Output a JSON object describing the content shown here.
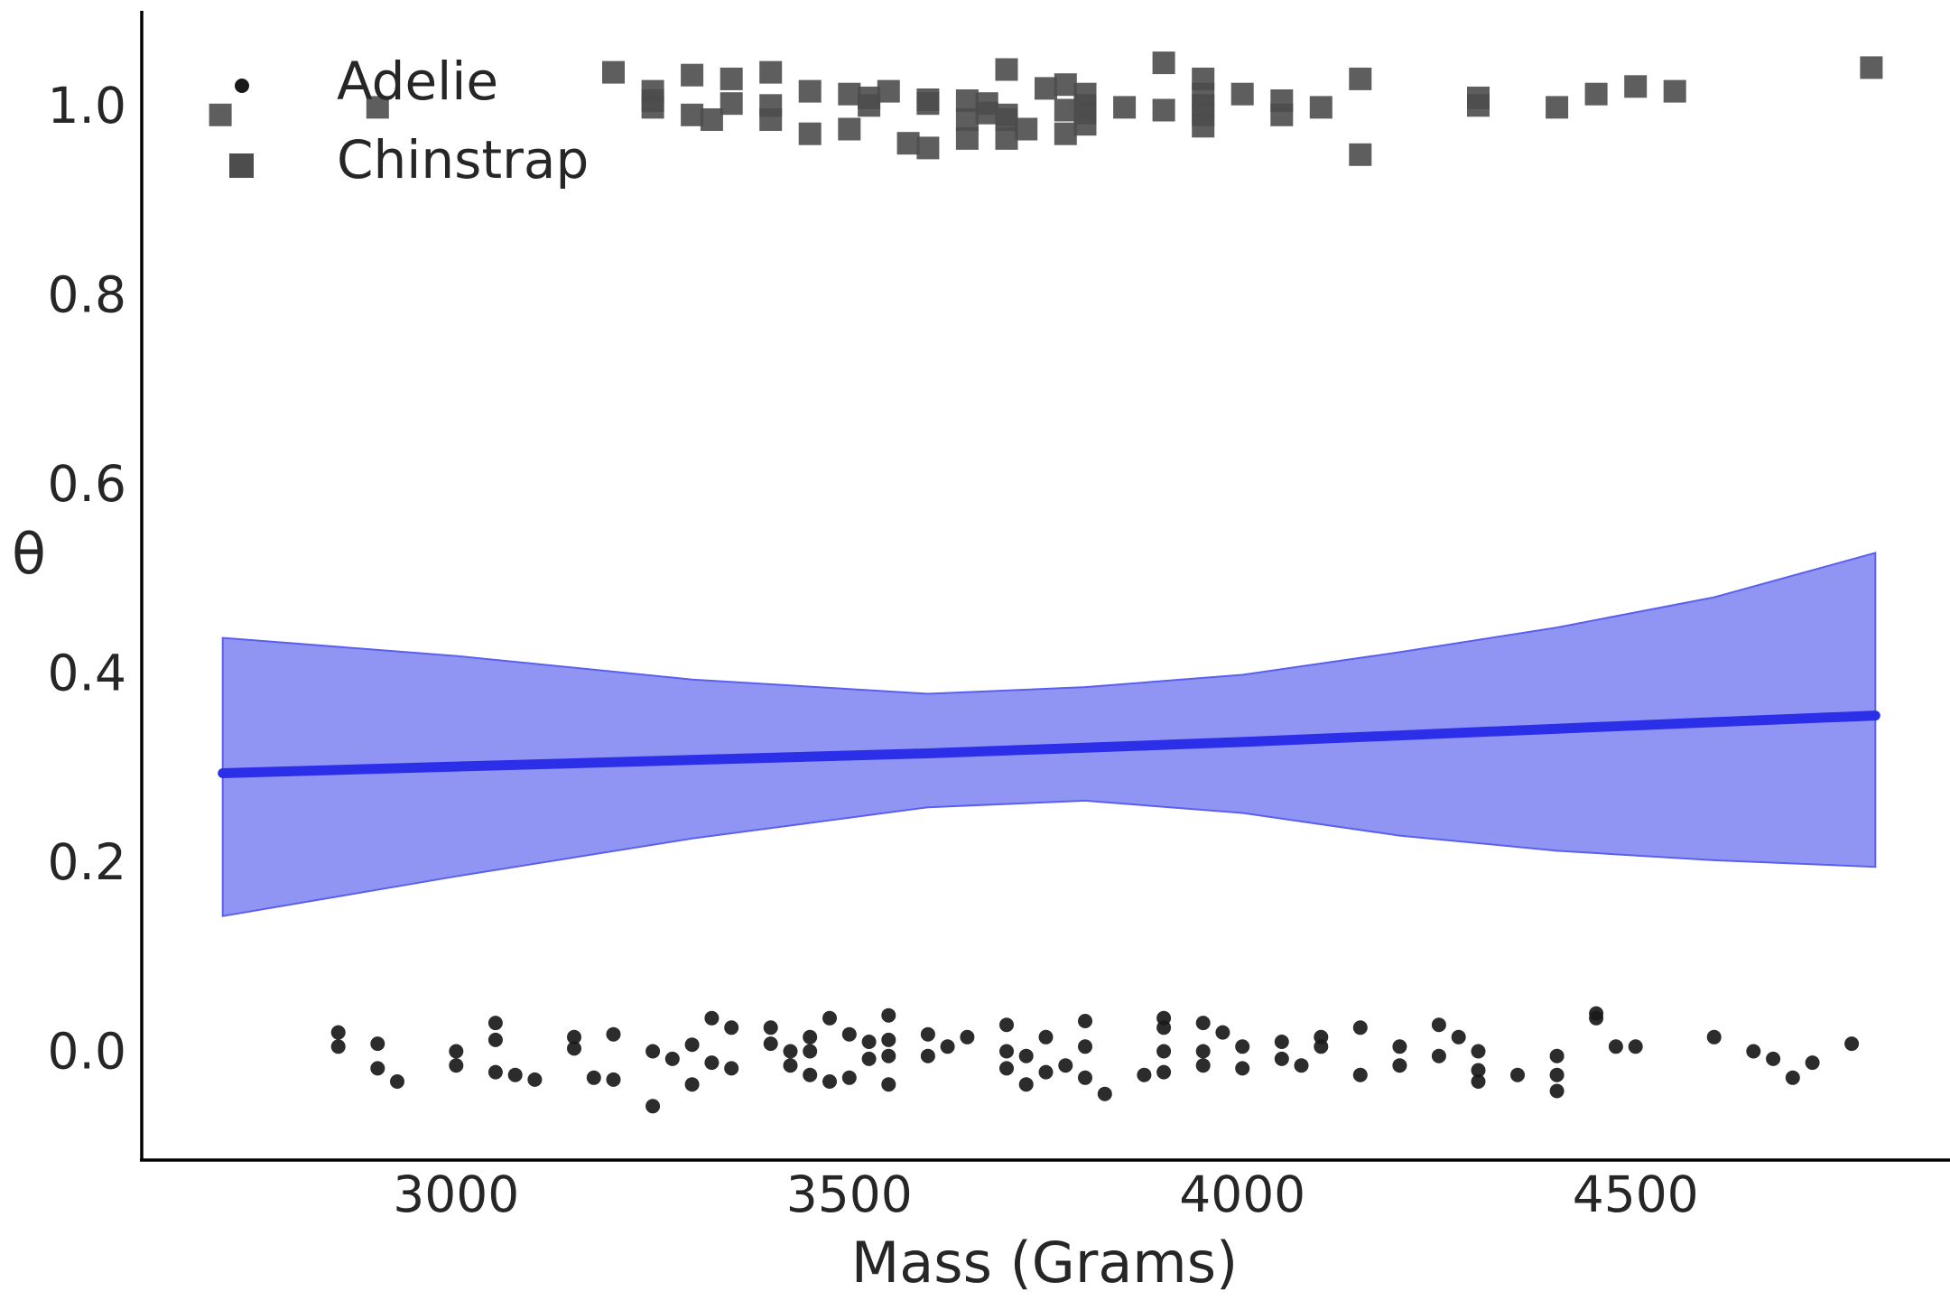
{
  "chart_data": {
    "type": "scatter",
    "xlabel": "Mass (Grams)",
    "ylabel": "θ",
    "xlim": [
      2600,
      4900
    ],
    "ylim": [
      -0.115,
      1.1
    ],
    "xticks": [
      3000,
      3500,
      4000,
      4500
    ],
    "xtick_labels": [
      "3000",
      "3500",
      "4000",
      "4500"
    ],
    "yticks": [
      0.0,
      0.2,
      0.4,
      0.6,
      0.8,
      1.0
    ],
    "ytick_labels": [
      "0.0",
      "0.2",
      "0.4",
      "0.6",
      "0.8",
      "1.0"
    ],
    "grid": false,
    "legend_position": "top-left",
    "colors": {
      "adelie": "#1a1a1a",
      "chinstrap": "#4d4d4d",
      "line": "#2b2fe8",
      "band": "#9095f4",
      "band_edge": "#5a5ff0",
      "axis": "#000000"
    },
    "series": [
      {
        "name": "Adelie",
        "marker": "circle",
        "x": [
          2850,
          2850,
          2900,
          2900,
          2925,
          3000,
          3000,
          3050,
          3050,
          3050,
          3075,
          3100,
          3150,
          3150,
          3175,
          3200,
          3200,
          3250,
          3250,
          3275,
          3300,
          3300,
          3325,
          3325,
          3350,
          3350,
          3400,
          3400,
          3425,
          3425,
          3450,
          3450,
          3450,
          3475,
          3475,
          3500,
          3500,
          3525,
          3525,
          3550,
          3550,
          3550,
          3550,
          3600,
          3600,
          3625,
          3650,
          3700,
          3700,
          3700,
          3725,
          3725,
          3750,
          3750,
          3775,
          3800,
          3800,
          3800,
          3825,
          3875,
          3900,
          3900,
          3900,
          3900,
          3950,
          3950,
          3950,
          3975,
          4000,
          4000,
          4050,
          4050,
          4075,
          4100,
          4100,
          4150,
          4150,
          4200,
          4200,
          4250,
          4250,
          4275,
          4300,
          4300,
          4300,
          4350,
          4400,
          4400,
          4400,
          4450,
          4450,
          4475,
          4500,
          4600,
          4650,
          4675,
          4700,
          4725,
          4775
        ],
        "y": [
          0.02,
          0.005,
          0.008,
          -0.018,
          -0.032,
          0.0,
          -0.015,
          0.03,
          0.012,
          -0.022,
          -0.025,
          -0.03,
          0.015,
          0.003,
          -0.028,
          0.018,
          -0.03,
          0.0,
          -0.058,
          -0.008,
          0.007,
          -0.035,
          0.035,
          -0.012,
          0.025,
          -0.018,
          0.025,
          0.008,
          0.0,
          -0.015,
          0.015,
          0.0,
          -0.025,
          0.035,
          -0.032,
          0.018,
          -0.028,
          0.01,
          -0.008,
          0.038,
          0.012,
          -0.005,
          -0.035,
          0.018,
          -0.005,
          0.005,
          0.015,
          0.028,
          0.0,
          -0.018,
          -0.005,
          -0.035,
          0.015,
          -0.022,
          -0.015,
          0.032,
          0.005,
          -0.028,
          -0.045,
          -0.025,
          0.035,
          0.025,
          0.0,
          -0.022,
          0.03,
          0.0,
          -0.015,
          0.02,
          0.005,
          -0.018,
          0.01,
          -0.008,
          -0.015,
          0.015,
          0.005,
          0.025,
          -0.025,
          0.005,
          -0.015,
          0.028,
          -0.005,
          0.015,
          0.0,
          -0.02,
          -0.032,
          -0.025,
          -0.005,
          -0.025,
          -0.042,
          0.04,
          0.035,
          0.005,
          0.005,
          0.015,
          0.0,
          -0.008,
          -0.028,
          -0.012,
          0.008
        ]
      },
      {
        "name": "Chinstrap",
        "marker": "square",
        "x": [
          2700,
          2900,
          3200,
          3250,
          3250,
          3250,
          3300,
          3300,
          3325,
          3350,
          3350,
          3400,
          3400,
          3400,
          3450,
          3450,
          3500,
          3500,
          3525,
          3525,
          3550,
          3575,
          3600,
          3600,
          3600,
          3650,
          3650,
          3650,
          3675,
          3675,
          3700,
          3700,
          3700,
          3700,
          3725,
          3750,
          3775,
          3775,
          3775,
          3800,
          3800,
          3800,
          3800,
          3850,
          3900,
          3900,
          3950,
          3950,
          3950,
          3950,
          3950,
          4000,
          4050,
          4050,
          4100,
          4150,
          4150,
          4300,
          4300,
          4400,
          4450,
          4500,
          4550,
          4800
        ],
        "y": [
          0.99,
          0.998,
          1.035,
          1.015,
          1.005,
          0.998,
          1.032,
          0.99,
          0.985,
          1.028,
          1.002,
          1.035,
          1.0,
          0.985,
          1.015,
          0.97,
          1.012,
          0.975,
          1.008,
          1.0,
          1.015,
          0.96,
          1.006,
          1.002,
          0.955,
          1.005,
          0.985,
          0.965,
          1.002,
          0.992,
          1.038,
          0.99,
          0.985,
          0.965,
          0.975,
          1.018,
          1.022,
          0.995,
          0.97,
          1.012,
          1.0,
          0.992,
          0.98,
          0.998,
          1.045,
          0.995,
          1.028,
          1.012,
          1.0,
          0.99,
          0.978,
          1.012,
          1.005,
          0.99,
          0.998,
          1.028,
          0.948,
          1.008,
          1.0,
          0.998,
          1.012,
          1.02,
          1.015,
          1.04
        ]
      }
    ],
    "fit": {
      "name": "",
      "x": [
        2703,
        3000,
        3300,
        3600,
        3800,
        4000,
        4200,
        4400,
        4600,
        4805
      ],
      "y": [
        0.294,
        0.301,
        0.308,
        0.315,
        0.321,
        0.327,
        0.334,
        0.341,
        0.348,
        0.355
      ],
      "lower": [
        0.143,
        0.185,
        0.225,
        0.258,
        0.265,
        0.252,
        0.228,
        0.212,
        0.202,
        0.195
      ],
      "upper": [
        0.437,
        0.418,
        0.393,
        0.378,
        0.385,
        0.398,
        0.422,
        0.448,
        0.48,
        0.527
      ]
    }
  }
}
